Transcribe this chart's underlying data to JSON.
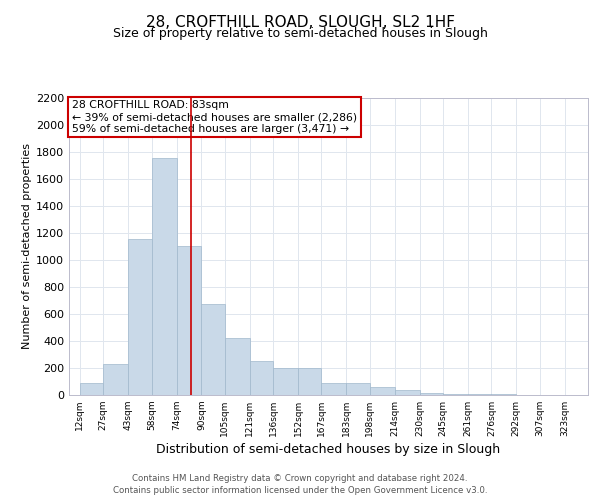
{
  "title_line1": "28, CROFTHILL ROAD, SLOUGH, SL2 1HF",
  "title_line2": "Size of property relative to semi-detached houses in Slough",
  "xlabel": "Distribution of semi-detached houses by size in Slough",
  "ylabel": "Number of semi-detached properties",
  "annotation_line1": "28 CROFTHILL ROAD: 83sqm",
  "annotation_line2": "← 39% of semi-detached houses are smaller (2,286)",
  "annotation_line3": "59% of semi-detached houses are larger (3,471) →",
  "property_size": 83,
  "footnote1": "Contains HM Land Registry data © Crown copyright and database right 2024.",
  "footnote2": "Contains public sector information licensed under the Open Government Licence v3.0.",
  "bin_edges": [
    12,
    27,
    43,
    58,
    74,
    90,
    105,
    121,
    136,
    152,
    167,
    183,
    198,
    214,
    230,
    245,
    261,
    276,
    292,
    307,
    323
  ],
  "bar_heights": [
    90,
    230,
    1150,
    1750,
    1100,
    670,
    420,
    250,
    200,
    200,
    90,
    90,
    60,
    40,
    15,
    8,
    4,
    4,
    3,
    2
  ],
  "bar_color": "#c9d9e8",
  "bar_edge_color": "#a0b8cc",
  "vline_x": 83,
  "vline_color": "#cc0000",
  "annotation_box_color": "#cc0000",
  "ylim": [
    0,
    2200
  ],
  "xlim": [
    5,
    338
  ],
  "yticks": [
    0,
    200,
    400,
    600,
    800,
    1000,
    1200,
    1400,
    1600,
    1800,
    2000,
    2200
  ],
  "xtick_labels": [
    "12sqm",
    "27sqm",
    "43sqm",
    "58sqm",
    "74sqm",
    "90sqm",
    "105sqm",
    "121sqm",
    "136sqm",
    "152sqm",
    "167sqm",
    "183sqm",
    "198sqm",
    "214sqm",
    "230sqm",
    "245sqm",
    "261sqm",
    "276sqm",
    "292sqm",
    "307sqm",
    "323sqm"
  ],
  "xtick_positions": [
    12,
    27,
    43,
    58,
    74,
    90,
    105,
    121,
    136,
    152,
    167,
    183,
    198,
    214,
    230,
    245,
    261,
    276,
    292,
    307,
    323
  ],
  "grid_color": "#e0e6ee",
  "background_color": "#ffffff"
}
